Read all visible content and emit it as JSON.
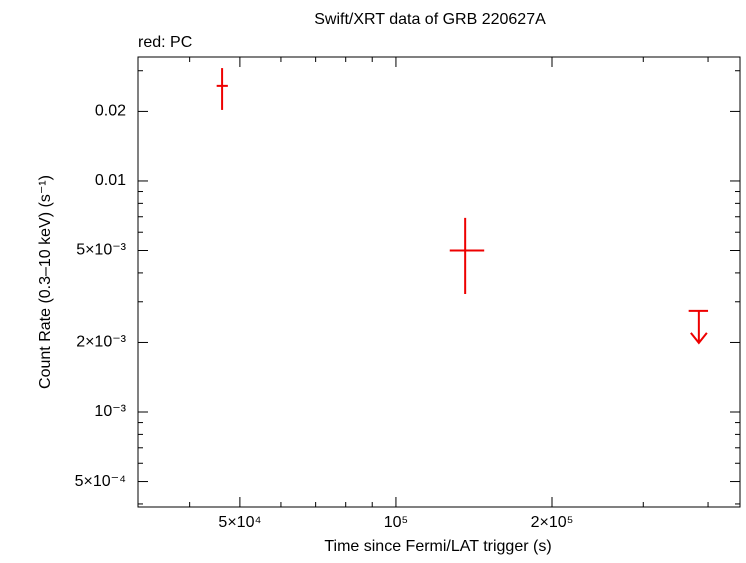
{
  "chart_data": {
    "type": "errorbar",
    "title": "Swift/XRT data of GRB 220627A",
    "subtitle": "red: PC",
    "x_label": "Time since Fermi/LAT trigger (s)",
    "y_label": "Count Rate (0.3–10 keV) (s⁻¹)",
    "log_x": true,
    "log_y": true,
    "xlim": [
      31800,
      461000
    ],
    "ylim": [
      0.000388,
      0.0344
    ],
    "xticks": [
      {
        "value": 50000,
        "label": "5×10⁴"
      },
      {
        "value": 100000,
        "label": "10⁵"
      },
      {
        "value": 200000,
        "label": "2×10⁵"
      }
    ],
    "xminor_ticks": [
      40000,
      60000,
      70000,
      80000,
      90000,
      300000,
      400000
    ],
    "yticks": [
      {
        "value": 0.0005,
        "label": "5×10⁻⁴"
      },
      {
        "value": 0.001,
        "label": "10⁻³"
      },
      {
        "value": 0.002,
        "label": "2×10⁻³"
      },
      {
        "value": 0.005,
        "label": "5×10⁻³"
      },
      0.01,
      0.02
    ],
    "yminor_ticks": [
      0.0004,
      0.0006,
      0.0007,
      0.0008,
      0.0009,
      0.003,
      0.004,
      0.006,
      0.007,
      0.008,
      0.009,
      0.03
    ],
    "series": [
      {
        "color": "#ee0000",
        "upper_limit": false,
        "x": [
          46200,
          136000
        ],
        "xerr_minus": [
          1100,
          9000
        ],
        "xerr_plus": [
          1200,
          12000
        ],
        "values": [
          0.0258,
          0.005
        ],
        "yerr_minus": [
          0.0055,
          0.00176
        ],
        "yerr_plus": [
          0.005,
          0.00192
        ]
      },
      {
        "color": "#ee0000",
        "upper_limit": true,
        "x": [
          384000
        ],
        "xerr_minus": [
          17000
        ],
        "xerr_plus": [
          16000
        ],
        "values": [
          0.00274
        ]
      }
    ]
  }
}
